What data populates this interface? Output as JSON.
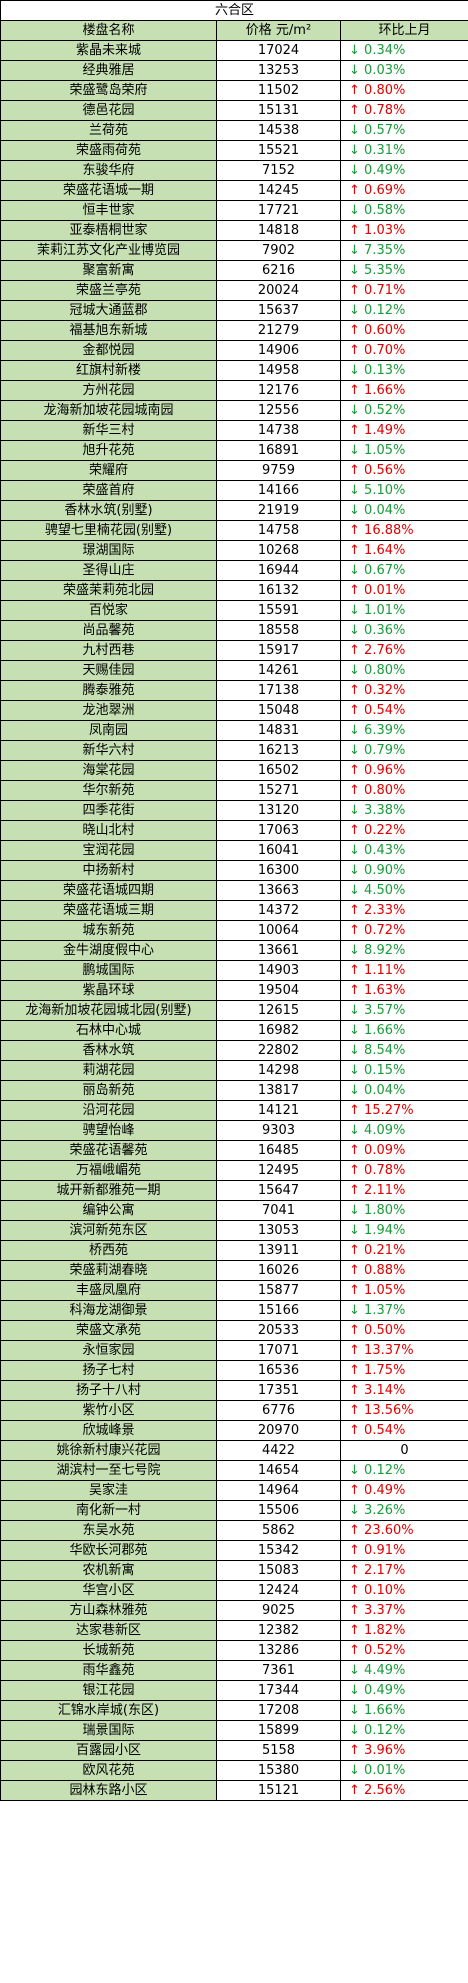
{
  "title": "六合区",
  "headers": {
    "name": "楼盘名称",
    "price": "价格 元/m²",
    "change": "环比上月"
  },
  "arrows": {
    "up": "↑",
    "down": "↓"
  },
  "rows": [
    {
      "name": "紫晶未来城",
      "price": "17024",
      "dir": "down",
      "change": "0.34%"
    },
    {
      "name": "经典雅居",
      "price": "13253",
      "dir": "down",
      "change": "0.03%"
    },
    {
      "name": "荣盛鹭岛荣府",
      "price": "11502",
      "dir": "up",
      "change": "0.80%"
    },
    {
      "name": "德邑花园",
      "price": "15131",
      "dir": "up",
      "change": "0.78%"
    },
    {
      "name": "兰荷苑",
      "price": "14538",
      "dir": "down",
      "change": "0.57%"
    },
    {
      "name": "荣盛雨荷苑",
      "price": "15521",
      "dir": "down",
      "change": "0.31%"
    },
    {
      "name": "东骏华府",
      "price": "7152",
      "dir": "down",
      "change": "0.49%"
    },
    {
      "name": "荣盛花语城一期",
      "price": "14245",
      "dir": "up",
      "change": "0.69%"
    },
    {
      "name": "恒丰世家",
      "price": "17721",
      "dir": "down",
      "change": "0.58%"
    },
    {
      "name": "亚泰梧桐世家",
      "price": "14818",
      "dir": "up",
      "change": "1.03%"
    },
    {
      "name": "茉莉江苏文化产业博览园",
      "price": "7902",
      "dir": "down",
      "change": "7.35%"
    },
    {
      "name": "聚富新寓",
      "price": "6216",
      "dir": "down",
      "change": "5.35%"
    },
    {
      "name": "荣盛兰亭苑",
      "price": "20024",
      "dir": "up",
      "change": "0.71%"
    },
    {
      "name": "冠城大通蓝郡",
      "price": "15637",
      "dir": "down",
      "change": "0.12%"
    },
    {
      "name": "福基旭东新城",
      "price": "21279",
      "dir": "up",
      "change": "0.60%"
    },
    {
      "name": "金都悦园",
      "price": "14906",
      "dir": "up",
      "change": "0.70%"
    },
    {
      "name": "红旗村新楼",
      "price": "14958",
      "dir": "down",
      "change": "0.13%"
    },
    {
      "name": "方州花园",
      "price": "12176",
      "dir": "up",
      "change": "1.66%"
    },
    {
      "name": "龙海新加坡花园城南园",
      "price": "12556",
      "dir": "down",
      "change": "0.52%"
    },
    {
      "name": "新华三村",
      "price": "14738",
      "dir": "up",
      "change": "1.49%"
    },
    {
      "name": "旭升花苑",
      "price": "16891",
      "dir": "down",
      "change": "1.05%"
    },
    {
      "name": "荣耀府",
      "price": "9759",
      "dir": "up",
      "change": "0.56%"
    },
    {
      "name": "荣盛首府",
      "price": "14166",
      "dir": "down",
      "change": "5.10%"
    },
    {
      "name": "香林水筑(别墅)",
      "price": "21919",
      "dir": "down",
      "change": "0.04%"
    },
    {
      "name": "骋望七里楠花园(别墅)",
      "price": "14758",
      "dir": "up",
      "change": "16.88%"
    },
    {
      "name": "璟湖国际",
      "price": "10268",
      "dir": "up",
      "change": "1.64%"
    },
    {
      "name": "圣得山庄",
      "price": "16944",
      "dir": "down",
      "change": "0.67%"
    },
    {
      "name": "荣盛茉莉苑北园",
      "price": "16132",
      "dir": "up",
      "change": "0.01%"
    },
    {
      "name": "百悦家",
      "price": "15591",
      "dir": "down",
      "change": "1.01%"
    },
    {
      "name": "尚品馨苑",
      "price": "18558",
      "dir": "down",
      "change": "0.36%"
    },
    {
      "name": "九村西巷",
      "price": "15917",
      "dir": "up",
      "change": "2.76%"
    },
    {
      "name": "天赐佳园",
      "price": "14261",
      "dir": "down",
      "change": "0.80%"
    },
    {
      "name": "腾泰雅苑",
      "price": "17138",
      "dir": "up",
      "change": "0.32%"
    },
    {
      "name": "龙池翠洲",
      "price": "15048",
      "dir": "up",
      "change": "0.54%"
    },
    {
      "name": "凤南园",
      "price": "14831",
      "dir": "down",
      "change": "6.39%"
    },
    {
      "name": "新华六村",
      "price": "16213",
      "dir": "down",
      "change": "0.79%"
    },
    {
      "name": "海棠花园",
      "price": "16502",
      "dir": "up",
      "change": "0.96%"
    },
    {
      "name": "华尔新苑",
      "price": "15271",
      "dir": "up",
      "change": "0.80%"
    },
    {
      "name": "四季花街",
      "price": "13120",
      "dir": "down",
      "change": "3.38%"
    },
    {
      "name": "晓山北村",
      "price": "17063",
      "dir": "up",
      "change": "0.22%"
    },
    {
      "name": "宝润花园",
      "price": "16041",
      "dir": "down",
      "change": "0.43%"
    },
    {
      "name": "中扬新村",
      "price": "16300",
      "dir": "down",
      "change": "0.90%"
    },
    {
      "name": "荣盛花语城四期",
      "price": "13663",
      "dir": "down",
      "change": "4.50%"
    },
    {
      "name": "荣盛花语城三期",
      "price": "14372",
      "dir": "up",
      "change": "2.33%"
    },
    {
      "name": "城东新苑",
      "price": "10064",
      "dir": "up",
      "change": "0.72%"
    },
    {
      "name": "金牛湖度假中心",
      "price": "13661",
      "dir": "down",
      "change": "8.92%"
    },
    {
      "name": "鹏城国际",
      "price": "14903",
      "dir": "up",
      "change": "1.11%"
    },
    {
      "name": "紫晶环球",
      "price": "19504",
      "dir": "up",
      "change": "1.63%"
    },
    {
      "name": "龙海新加坡花园城北园(别墅)",
      "price": "12615",
      "dir": "down",
      "change": "3.57%"
    },
    {
      "name": "石林中心城",
      "price": "16982",
      "dir": "down",
      "change": "1.66%"
    },
    {
      "name": "香林水筑",
      "price": "22802",
      "dir": "down",
      "change": "8.54%"
    },
    {
      "name": "莉湖花园",
      "price": "14298",
      "dir": "down",
      "change": "0.15%"
    },
    {
      "name": "丽岛新苑",
      "price": "13817",
      "dir": "down",
      "change": "0.04%"
    },
    {
      "name": "沿河花园",
      "price": "14121",
      "dir": "up",
      "change": "15.27%"
    },
    {
      "name": "骋望怡峰",
      "price": "9303",
      "dir": "down",
      "change": "4.09%"
    },
    {
      "name": "荣盛花语馨苑",
      "price": "16485",
      "dir": "up",
      "change": "0.09%"
    },
    {
      "name": "万福峨嵋苑",
      "price": "12495",
      "dir": "up",
      "change": "0.78%"
    },
    {
      "name": "城开新都雅苑一期",
      "price": "15647",
      "dir": "up",
      "change": "2.11%"
    },
    {
      "name": "编钟公寓",
      "price": "7041",
      "dir": "down",
      "change": "1.80%"
    },
    {
      "name": "滨河新苑东区",
      "price": "13053",
      "dir": "down",
      "change": "1.94%"
    },
    {
      "name": "桥西苑",
      "price": "13911",
      "dir": "up",
      "change": "0.21%"
    },
    {
      "name": "荣盛莉湖春晓",
      "price": "16026",
      "dir": "up",
      "change": "0.88%"
    },
    {
      "name": "丰盛凤凰府",
      "price": "15877",
      "dir": "up",
      "change": "1.05%"
    },
    {
      "name": "科海龙湖御景",
      "price": "15166",
      "dir": "down",
      "change": "1.37%"
    },
    {
      "name": "荣盛文承苑",
      "price": "20533",
      "dir": "up",
      "change": "0.50%"
    },
    {
      "name": "永恒家园",
      "price": "17071",
      "dir": "up",
      "change": "13.37%"
    },
    {
      "name": "扬子七村",
      "price": "16536",
      "dir": "up",
      "change": "1.75%"
    },
    {
      "name": "扬子十八村",
      "price": "17351",
      "dir": "up",
      "change": "3.14%"
    },
    {
      "name": "紫竹小区",
      "price": "6776",
      "dir": "up",
      "change": "13.56%"
    },
    {
      "name": "欣城峰景",
      "price": "20970",
      "dir": "up",
      "change": "0.54%"
    },
    {
      "name": "姚徐新村康兴花园",
      "price": "4422",
      "dir": "flat",
      "change": "0"
    },
    {
      "name": "湖滨村一至七号院",
      "price": "14654",
      "dir": "down",
      "change": "0.12%"
    },
    {
      "name": "吴家洼",
      "price": "14964",
      "dir": "up",
      "change": "0.49%"
    },
    {
      "name": "南化新一村",
      "price": "15506",
      "dir": "down",
      "change": "3.26%"
    },
    {
      "name": "东吴水苑",
      "price": "5862",
      "dir": "up",
      "change": "23.60%"
    },
    {
      "name": "华欧长河郡苑",
      "price": "15342",
      "dir": "up",
      "change": "0.91%"
    },
    {
      "name": "农机新寓",
      "price": "15083",
      "dir": "up",
      "change": "2.17%"
    },
    {
      "name": "华宫小区",
      "price": "12424",
      "dir": "up",
      "change": "0.10%"
    },
    {
      "name": "方山森林雅苑",
      "price": "9025",
      "dir": "up",
      "change": "3.37%"
    },
    {
      "name": "达家巷新区",
      "price": "12382",
      "dir": "up",
      "change": "1.82%"
    },
    {
      "name": "长城新苑",
      "price": "13286",
      "dir": "up",
      "change": "0.52%"
    },
    {
      "name": "雨华鑫苑",
      "price": "7361",
      "dir": "down",
      "change": "4.49%"
    },
    {
      "name": "银江花园",
      "price": "17344",
      "dir": "down",
      "change": "0.49%"
    },
    {
      "name": "汇锦水岸城(东区)",
      "price": "17208",
      "dir": "down",
      "change": "1.66%"
    },
    {
      "name": "瑞景国际",
      "price": "15899",
      "dir": "down",
      "change": "0.12%"
    },
    {
      "name": "百露园小区",
      "price": "5158",
      "dir": "up",
      "change": "3.96%"
    },
    {
      "name": "欧风花苑",
      "price": "15380",
      "dir": "down",
      "change": "0.01%"
    },
    {
      "name": "园林东路小区",
      "price": "15121",
      "dir": "up",
      "change": "2.56%"
    }
  ]
}
